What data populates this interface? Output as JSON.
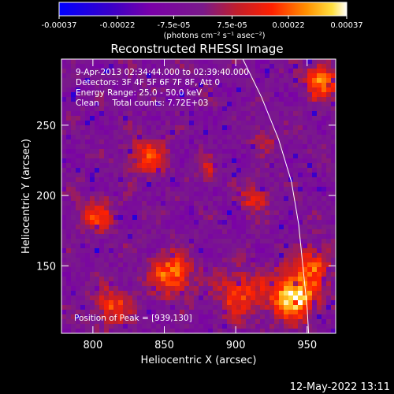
{
  "chart_data": {
    "type": "heatmap",
    "title": "Reconstructed RHESSI Image",
    "xlabel": "Heliocentric X (arcsec)",
    "ylabel": "Heliocentric Y (arcsec)",
    "xlim": [
      778,
      970
    ],
    "ylim": [
      102,
      297
    ],
    "x_ticks": [
      800,
      850,
      900,
      950
    ],
    "y_ticks": [
      150,
      200,
      250
    ],
    "colorbar": {
      "unit_label": "(photons cm⁻² s⁻¹ asec⁻²)",
      "range": [
        -0.00037,
        0.00037
      ],
      "tick_values": [
        -0.00037,
        -0.00022,
        -7.5e-05,
        7.5e-05,
        0.00022,
        0.00037
      ],
      "tick_labels": [
        "-0.00037",
        "-0.00022",
        "-7.5e-05",
        "7.5e-05",
        "0.00022",
        "0.00037"
      ]
    },
    "annotations": [
      "9-Apr-2013 02:34:44.000 to 02:39:40.000",
      "Detectors: 3F 4F 5F 6F 7F 8F, Att 0",
      "Energy Range: 25.0 - 50.0 keV",
      "Clean     Total counts: 7.72E+03"
    ],
    "peak_label": "Position of Peak = [939,130]",
    "peak": [
      939,
      130
    ],
    "limb_curve": [
      [
        905,
        297
      ],
      [
        918,
        270
      ],
      [
        930,
        240
      ],
      [
        939,
        210
      ],
      [
        944,
        180
      ],
      [
        947,
        150
      ],
      [
        950,
        120
      ],
      [
        951,
        102
      ]
    ],
    "grid": false,
    "legend": "none"
  },
  "footer": {
    "timestamp": "12-May-2022 13:11"
  }
}
